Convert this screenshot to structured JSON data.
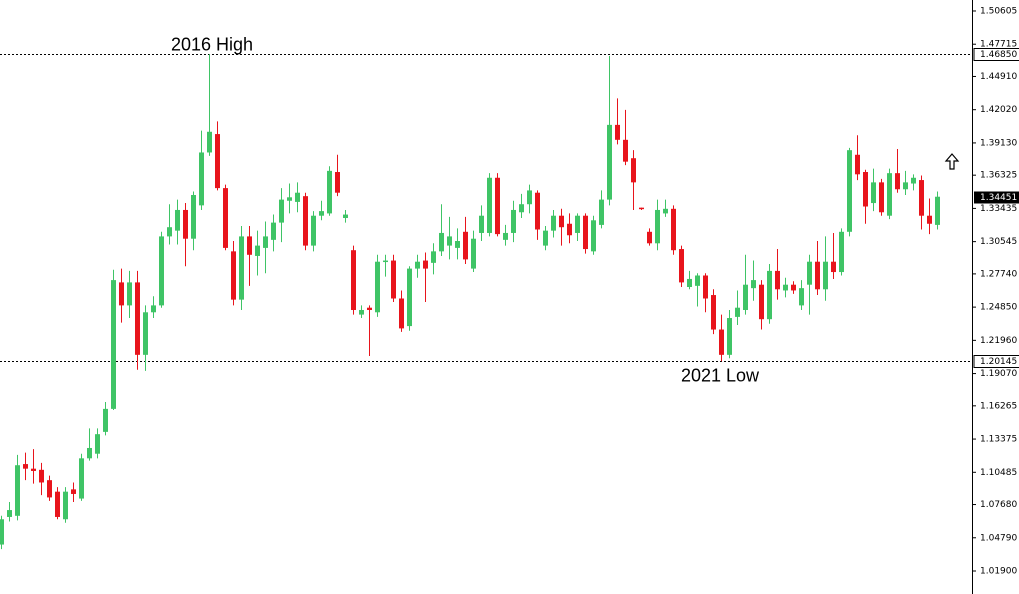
{
  "chart_data": {
    "type": "candlestick",
    "up_color": "#3fc466",
    "down_color": "#e8141c",
    "ylim": [
      0.999,
      1.5156
    ],
    "yticks": [
      {
        "value": 1.50605,
        "label": "1.50605"
      },
      {
        "value": 1.47715,
        "label": "1.47715"
      },
      {
        "value": 1.4491,
        "label": "1.44910"
      },
      {
        "value": 1.4202,
        "label": "1.42020"
      },
      {
        "value": 1.3913,
        "label": "1.39130"
      },
      {
        "value": 1.36325,
        "label": "1.36325"
      },
      {
        "value": 1.33435,
        "label": "1.33435"
      },
      {
        "value": 1.30545,
        "label": "1.30545"
      },
      {
        "value": 1.2774,
        "label": "1.27740"
      },
      {
        "value": 1.2485,
        "label": "1.24850"
      },
      {
        "value": 1.2196,
        "label": "1.21960"
      },
      {
        "value": 1.1907,
        "label": "1.19070"
      },
      {
        "value": 1.16265,
        "label": "1.16265"
      },
      {
        "value": 1.13375,
        "label": "1.13375"
      },
      {
        "value": 1.10485,
        "label": "1.10485"
      },
      {
        "value": 1.0768,
        "label": "1.07680"
      },
      {
        "value": 1.0479,
        "label": "1.04790"
      },
      {
        "value": 1.019,
        "label": "1.01900"
      }
    ],
    "levels": [
      {
        "value": 1.4685,
        "label": "1.46850",
        "annotation": "2016 High"
      },
      {
        "value": 1.20145,
        "label": "1.20145",
        "annotation": "2021 Low"
      }
    ],
    "last": {
      "value": 1.34451,
      "label": "1.34451"
    },
    "open": [
      1.042,
      1.066,
      1.067,
      1.112,
      1.108,
      1.107,
      1.098,
      1.088,
      1.064,
      1.09,
      1.082,
      1.117,
      1.121,
      1.14,
      1.16,
      1.27,
      1.25,
      1.27,
      1.207,
      1.244,
      1.25,
      1.31,
      1.315,
      1.333,
      1.308,
      1.337,
      1.383,
      1.399,
      1.352,
      1.297,
      1.255,
      1.31,
      1.293,
      1.3,
      1.307,
      1.322,
      1.341,
      1.34,
      1.345,
      1.302,
      1.328,
      1.33,
      1.366,
      1.326,
      1.298,
      1.242,
      1.248,
      1.244,
      1.288,
      1.289,
      1.256,
      1.232,
      1.282,
      1.289,
      1.287,
      1.297,
      1.302,
      1.3,
      1.314,
      1.282,
      1.313,
      1.313,
      1.361,
      1.307,
      1.313,
      1.331,
      1.338,
      1.348,
      1.302,
      1.315,
      1.328,
      1.321,
      1.313,
      1.328,
      1.297,
      1.32,
      1.342,
      1.407,
      1.394,
      1.378,
      1.335,
      1.314,
      1.304,
      1.33,
      1.334,
      1.299,
      1.266,
      1.267,
      1.276,
      1.259,
      1.229,
      1.207,
      1.24,
      1.246,
      1.265,
      1.268,
      1.238,
      1.28,
      1.263,
      1.268,
      1.25,
      1.268,
      1.288,
      1.264,
      1.288,
      1.279,
      1.314,
      1.381,
      1.366,
      1.339,
      1.357,
      1.328,
      1.365,
      1.351,
      1.356,
      1.359,
      1.328,
      1.32
    ],
    "high": [
      1.067,
      1.079,
      1.12,
      1.122,
      1.125,
      1.113,
      1.102,
      1.092,
      1.092,
      1.096,
      1.121,
      1.143,
      1.143,
      1.166,
      1.281,
      1.282,
      1.28,
      1.28,
      1.25,
      1.258,
      1.314,
      1.338,
      1.342,
      1.339,
      1.349,
      1.402,
      1.4685,
      1.41,
      1.355,
      1.306,
      1.319,
      1.319,
      1.315,
      1.323,
      1.329,
      1.352,
      1.356,
      1.357,
      1.348,
      1.332,
      1.341,
      1.371,
      1.381,
      1.333,
      1.302,
      1.25,
      1.25,
      1.294,
      1.294,
      1.294,
      1.263,
      1.284,
      1.294,
      1.296,
      1.304,
      1.338,
      1.327,
      1.317,
      1.327,
      1.315,
      1.337,
      1.365,
      1.365,
      1.32,
      1.341,
      1.347,
      1.355,
      1.35,
      1.319,
      1.333,
      1.334,
      1.33,
      1.33,
      1.33,
      1.328,
      1.35,
      1.467,
      1.43,
      1.42,
      1.385,
      1.335,
      1.317,
      1.342,
      1.342,
      1.337,
      1.302,
      1.28,
      1.278,
      1.278,
      1.264,
      1.242,
      1.246,
      1.263,
      1.294,
      1.289,
      1.272,
      1.286,
      1.299,
      1.274,
      1.271,
      1.272,
      1.294,
      1.306,
      1.31,
      1.313,
      1.317,
      1.387,
      1.398,
      1.368,
      1.369,
      1.36,
      1.369,
      1.386,
      1.367,
      1.364,
      1.363,
      1.343,
      1.349
    ],
    "low": [
      1.038,
      1.062,
      1.063,
      1.098,
      1.095,
      1.085,
      1.08,
      1.064,
      1.061,
      1.079,
      1.08,
      1.115,
      1.117,
      1.137,
      1.159,
      1.235,
      1.239,
      1.194,
      1.193,
      1.239,
      1.248,
      1.303,
      1.303,
      1.284,
      1.298,
      1.333,
      1.38,
      1.35,
      1.298,
      1.25,
      1.246,
      1.267,
      1.276,
      1.278,
      1.297,
      1.305,
      1.33,
      1.331,
      1.298,
      1.297,
      1.324,
      1.328,
      1.345,
      1.322,
      1.242,
      1.239,
      1.206,
      1.24,
      1.275,
      1.253,
      1.227,
      1.228,
      1.274,
      1.253,
      1.277,
      1.293,
      1.29,
      1.29,
      1.286,
      1.279,
      1.306,
      1.31,
      1.31,
      1.302,
      1.305,
      1.326,
      1.33,
      1.307,
      1.298,
      1.309,
      1.302,
      1.304,
      1.306,
      1.295,
      1.294,
      1.317,
      1.337,
      1.39,
      1.372,
      1.333,
      1.333,
      1.302,
      1.298,
      1.327,
      1.294,
      1.266,
      1.264,
      1.249,
      1.244,
      1.225,
      1.20145,
      1.204,
      1.233,
      1.242,
      1.254,
      1.229,
      1.234,
      1.255,
      1.257,
      1.26,
      1.246,
      1.242,
      1.259,
      1.254,
      1.273,
      1.276,
      1.31,
      1.359,
      1.321,
      1.332,
      1.328,
      1.325,
      1.348,
      1.346,
      1.35,
      1.316,
      1.312,
      1.316
    ],
    "close": [
      1.064,
      1.072,
      1.111,
      1.108,
      1.106,
      1.096,
      1.083,
      1.066,
      1.088,
      1.086,
      1.117,
      1.126,
      1.138,
      1.16,
      1.272,
      1.25,
      1.27,
      1.207,
      1.244,
      1.25,
      1.31,
      1.318,
      1.333,
      1.308,
      1.346,
      1.383,
      1.401,
      1.352,
      1.3,
      1.255,
      1.31,
      1.294,
      1.302,
      1.31,
      1.322,
      1.342,
      1.344,
      1.348,
      1.302,
      1.328,
      1.332,
      1.367,
      1.348,
      1.329,
      1.246,
      1.246,
      1.246,
      1.288,
      1.289,
      1.256,
      1.23,
      1.282,
      1.288,
      1.282,
      1.297,
      1.313,
      1.31,
      1.306,
      1.29,
      1.308,
      1.328,
      1.361,
      1.312,
      1.313,
      1.333,
      1.338,
      1.35,
      1.316,
      1.315,
      1.328,
      1.318,
      1.311,
      1.328,
      1.299,
      1.324,
      1.342,
      1.407,
      1.394,
      1.375,
      1.357,
      1.334,
      1.304,
      1.333,
      1.334,
      1.298,
      1.27,
      1.273,
      1.276,
      1.256,
      1.229,
      1.207,
      1.239,
      1.248,
      1.268,
      1.272,
      1.238,
      1.28,
      1.264,
      1.268,
      1.263,
      1.265,
      1.288,
      1.264,
      1.288,
      1.279,
      1.314,
      1.385,
      1.364,
      1.336,
      1.357,
      1.331,
      1.365,
      1.351,
      1.357,
      1.361,
      1.328,
      1.321,
      1.34451
    ]
  }
}
